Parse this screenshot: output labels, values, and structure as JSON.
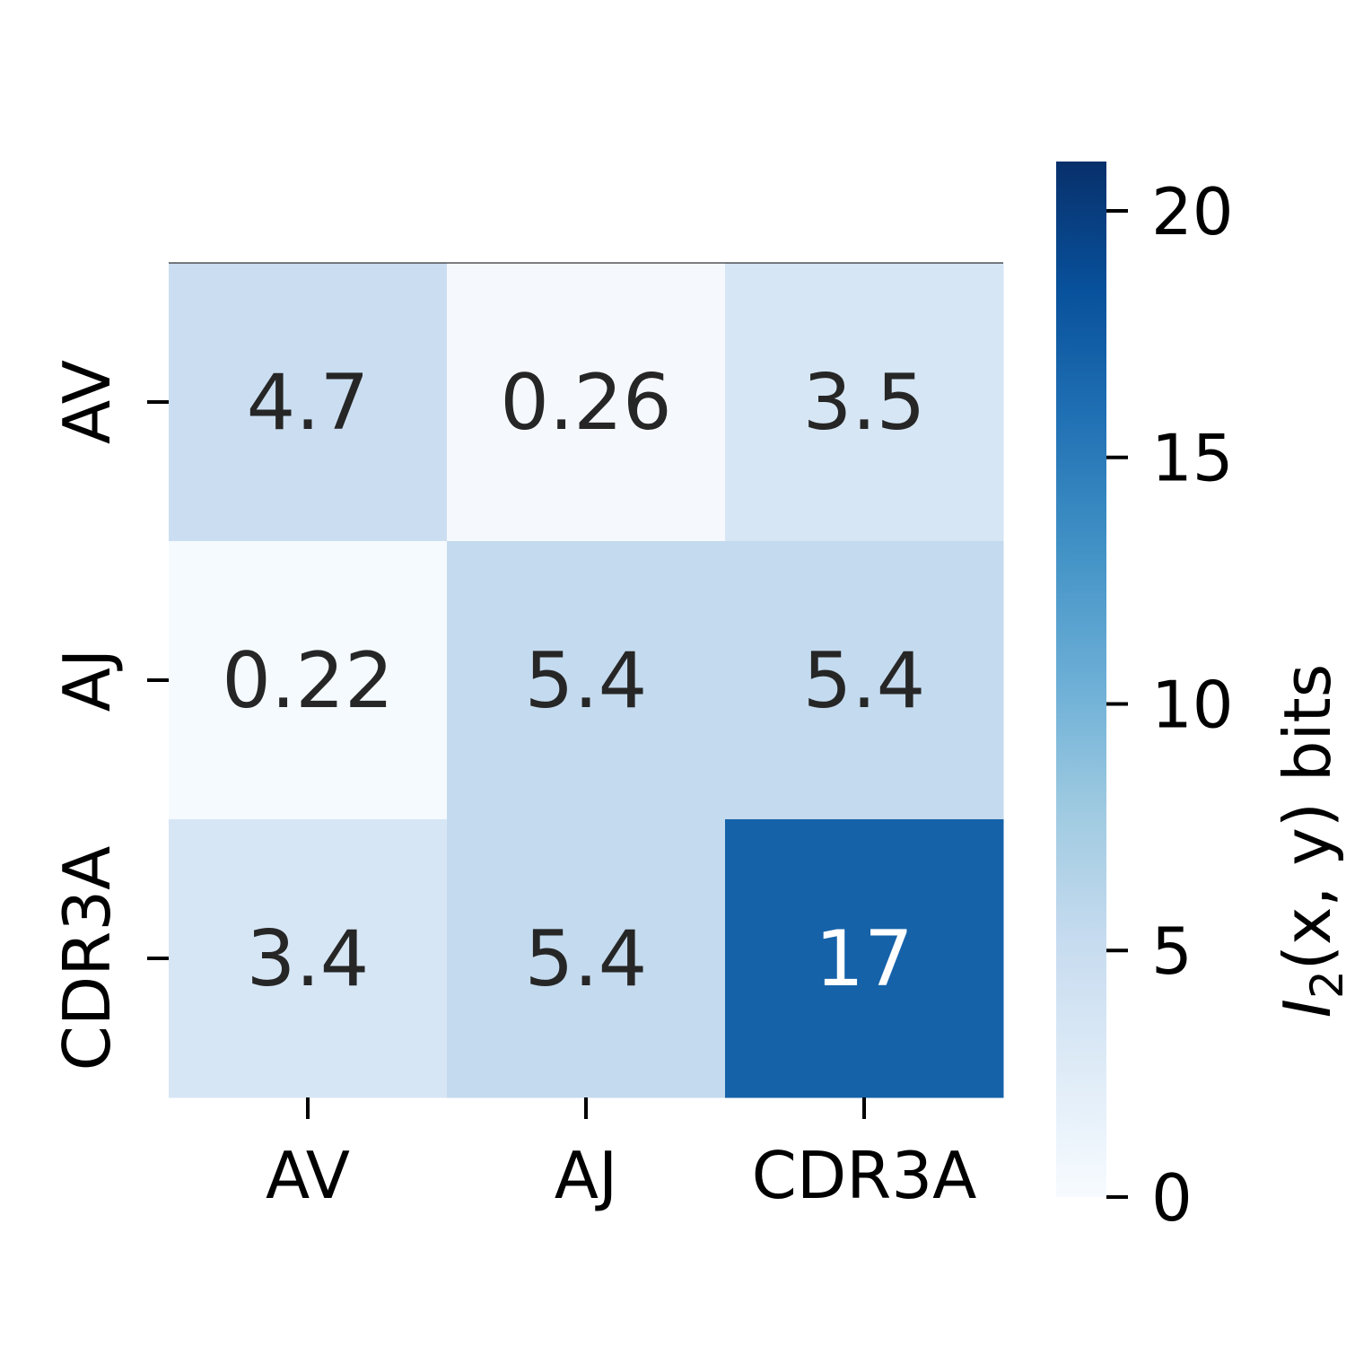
{
  "chart_data": {
    "type": "heatmap",
    "title": "",
    "rows": [
      "AV",
      "AJ",
      "CDR3A"
    ],
    "columns": [
      "AV",
      "AJ",
      "CDR3A"
    ],
    "values": [
      [
        4.7,
        0.26,
        3.5
      ],
      [
        0.22,
        5.4,
        5.4
      ],
      [
        3.4,
        5.4,
        17
      ]
    ],
    "cell_labels": [
      [
        "4.7",
        "0.26",
        "3.5"
      ],
      [
        "0.22",
        "5.4",
        "5.4"
      ],
      [
        "3.4",
        "5.4",
        "17"
      ]
    ],
    "colorbar": {
      "min": 0,
      "max": 21,
      "ticks": [
        0,
        5,
        10,
        15,
        20
      ],
      "tick_labels": [
        "0",
        "5",
        "10",
        "15",
        "20"
      ],
      "label_main": "I",
      "label_sub": "2",
      "label_rest": "(x, y) bits",
      "colormap": "Blues",
      "colors": [
        "#f7fbff",
        "#deebf7",
        "#c6dbef",
        "#9ecae1",
        "#6baed6",
        "#4292c6",
        "#2171b5",
        "#08519c",
        "#08306b"
      ]
    },
    "text_colors": {
      "dark": "#262626",
      "light": "#ffffff"
    },
    "grid": false,
    "legend": "right"
  }
}
